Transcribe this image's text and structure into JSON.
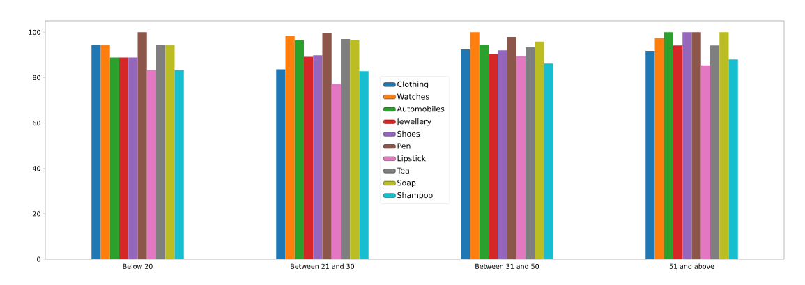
{
  "chart_data": {
    "type": "bar",
    "categories": [
      "Below 20",
      "Between 21 and 30",
      "Between 31 and 50",
      "51 and above"
    ],
    "ylim": [
      0,
      105
    ],
    "yticks": [
      0,
      20,
      40,
      60,
      80,
      100
    ],
    "grid": false,
    "legend": "center",
    "series": [
      {
        "name": "Clothing",
        "color": "#1f77b4",
        "values": [
          94.4,
          83.7,
          92.4,
          91.8
        ]
      },
      {
        "name": "Watches",
        "color": "#ff7f0e",
        "values": [
          94.4,
          98.5,
          100,
          97.4
        ]
      },
      {
        "name": "Automobiles",
        "color": "#2ca02c",
        "values": [
          88.9,
          96.5,
          94.5,
          100
        ]
      },
      {
        "name": "Jewellery",
        "color": "#d62728",
        "values": [
          88.9,
          89.2,
          90.4,
          94.2
        ]
      },
      {
        "name": "Shoes",
        "color": "#9467bd",
        "values": [
          88.9,
          89.9,
          92.0,
          100
        ]
      },
      {
        "name": "Pen",
        "color": "#8c564b",
        "values": [
          100,
          99.6,
          97.9,
          100
        ]
      },
      {
        "name": "Lipstick",
        "color": "#e377c2",
        "values": [
          83.3,
          77.2,
          89.5,
          85.4
        ]
      },
      {
        "name": "Tea",
        "color": "#7f7f7f",
        "values": [
          94.4,
          97.0,
          93.4,
          94.2
        ]
      },
      {
        "name": "Soap",
        "color": "#bcbd22",
        "values": [
          94.4,
          96.5,
          95.9,
          100
        ]
      },
      {
        "name": "Shampoo",
        "color": "#17becf",
        "values": [
          83.3,
          82.8,
          86.2,
          88.0
        ]
      }
    ]
  }
}
